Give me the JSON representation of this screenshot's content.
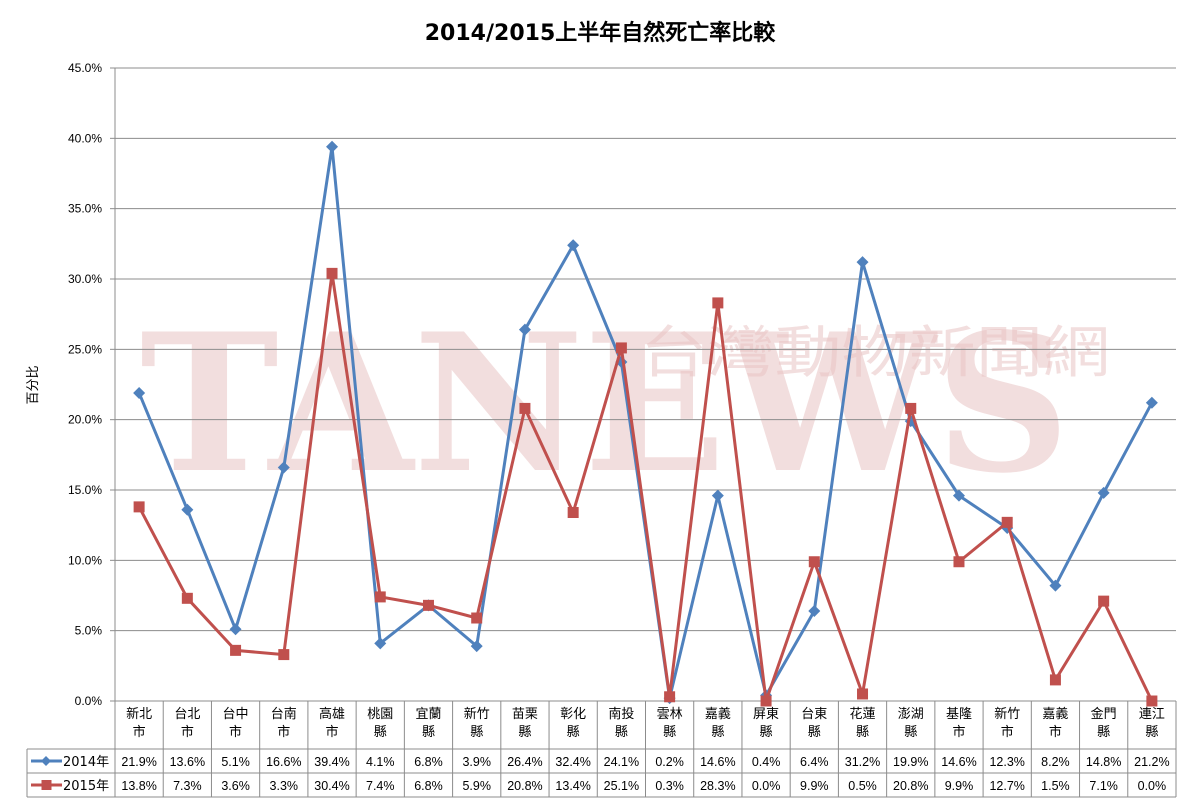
{
  "chart_data": {
    "type": "line",
    "title": "2014/2015上半年自然死亡率比較",
    "ylabel": "百分比",
    "ylim": [
      0,
      45
    ],
    "ytick_step": 5,
    "ytick_labels": [
      "0.0%",
      "5.0%",
      "10.0%",
      "15.0%",
      "20.0%",
      "25.0%",
      "30.0%",
      "35.0%",
      "40.0%",
      "45.0%"
    ],
    "grid": true,
    "categories": [
      "新北市",
      "台北市",
      "台中市",
      "台南市",
      "高雄市",
      "桃園縣",
      "宜蘭縣",
      "新竹縣",
      "苗栗縣",
      "彰化縣",
      "南投縣",
      "雲林縣",
      "嘉義縣",
      "屏東縣",
      "台東縣",
      "花蓮縣",
      "澎湖縣",
      "基隆市",
      "新竹市",
      "嘉義市",
      "金門縣",
      "連江縣"
    ],
    "series": [
      {
        "name": "2014年",
        "color": "#4f81bd",
        "marker": "diamond",
        "values": [
          21.9,
          13.6,
          5.1,
          16.6,
          39.4,
          4.1,
          6.8,
          3.9,
          26.4,
          32.4,
          24.1,
          0.2,
          14.6,
          0.4,
          6.4,
          31.2,
          19.9,
          14.6,
          12.3,
          8.2,
          14.8,
          21.2
        ],
        "labels": [
          "21.9%",
          "13.6%",
          "5.1%",
          "16.6%",
          "39.4%",
          "4.1%",
          "6.8%",
          "3.9%",
          "26.4%",
          "32.4%",
          "24.1%",
          "0.2%",
          "14.6%",
          "0.4%",
          "6.4%",
          "31.2%",
          "19.9%",
          "14.6%",
          "12.3%",
          "8.2%",
          "14.8%",
          "21.2%"
        ]
      },
      {
        "name": "2015年",
        "color": "#c0504d",
        "marker": "square",
        "values": [
          13.8,
          7.3,
          3.6,
          3.3,
          30.4,
          7.4,
          6.8,
          5.9,
          20.8,
          13.4,
          25.1,
          0.3,
          28.3,
          0.0,
          9.9,
          0.5,
          20.8,
          9.9,
          12.7,
          1.5,
          7.1,
          0.0
        ],
        "labels": [
          "13.8%",
          "7.3%",
          "3.6%",
          "3.3%",
          "30.4%",
          "7.4%",
          "6.8%",
          "5.9%",
          "20.8%",
          "13.4%",
          "25.1%",
          "0.3%",
          "28.3%",
          "0.0%",
          "9.9%",
          "0.5%",
          "20.8%",
          "9.9%",
          "12.7%",
          "1.5%",
          "7.1%",
          "0.0%"
        ]
      }
    ],
    "legend": "data-table"
  },
  "watermark": {
    "logo_text": "TANEWS",
    "site_name": "台灣動物新聞網",
    "color": "#e9c4c4"
  }
}
